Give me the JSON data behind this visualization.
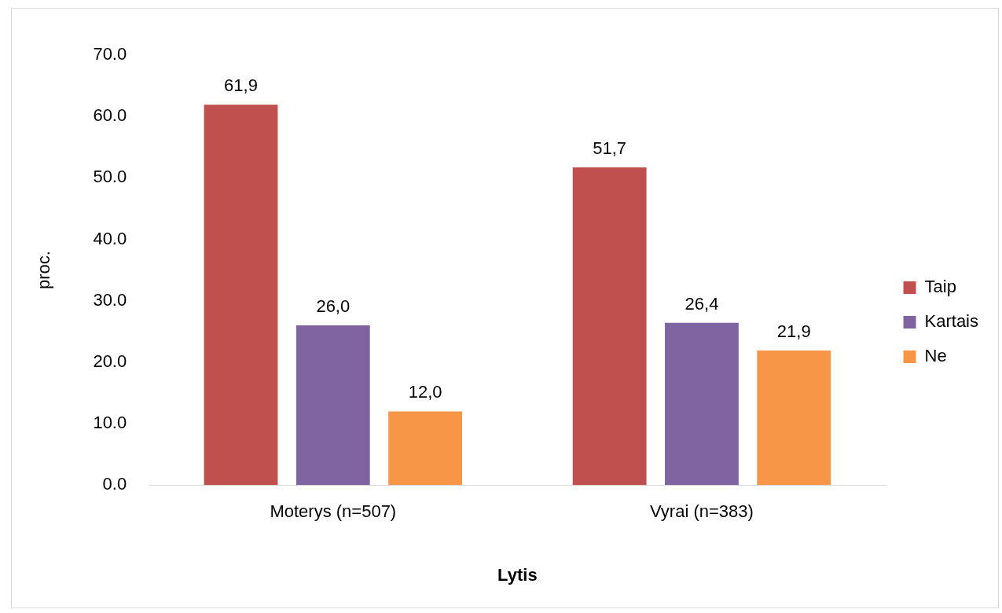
{
  "chart_data": {
    "type": "bar",
    "xlabel": "Lytis",
    "ylabel": "proc.",
    "categories": [
      "Moterys (n=507)",
      "Vyrai (n=383)"
    ],
    "series": [
      {
        "name": "Taip",
        "color": "#c0504d",
        "values": [
          61.9,
          51.7
        ],
        "value_labels": [
          "61,9",
          "51,7"
        ]
      },
      {
        "name": "Kartais",
        "color": "#8064a2",
        "values": [
          26.0,
          26.4
        ],
        "value_labels": [
          "26,0",
          "26,4"
        ]
      },
      {
        "name": "Ne",
        "color": "#f79646",
        "values": [
          12.0,
          21.9
        ],
        "value_labels": [
          "12,0",
          "21,9"
        ]
      }
    ],
    "ylim": [
      0,
      70
    ],
    "yticks": [
      {
        "value": 0,
        "label": "0.0"
      },
      {
        "value": 10,
        "label": "10.0"
      },
      {
        "value": 20,
        "label": "20.0"
      },
      {
        "value": 30,
        "label": "30.0"
      },
      {
        "value": 40,
        "label": "40.0"
      },
      {
        "value": 50,
        "label": "50.0"
      },
      {
        "value": 60,
        "label": "60.0"
      },
      {
        "value": 70,
        "label": "70.0"
      }
    ],
    "grid": false,
    "legend": "right"
  }
}
